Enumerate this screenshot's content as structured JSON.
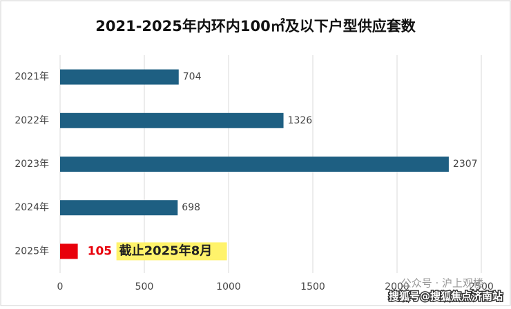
{
  "chart_data": {
    "type": "hbar",
    "title": "2021-2025年内环内100㎡及以下户型供应套数",
    "categories": [
      "2021年",
      "2022年",
      "2023年",
      "2024年",
      "2025年"
    ],
    "values": [
      704,
      1326,
      2307,
      698,
      105
    ],
    "colors": [
      "#1e5f82",
      "#1e5f82",
      "#1e5f82",
      "#1e5f82",
      "#e8000b"
    ],
    "xlim": [
      0,
      2500
    ],
    "xticks": [
      0,
      500,
      1000,
      1500,
      2000,
      2500
    ],
    "grid": true,
    "annotation": "截止2025年8月",
    "watermarks": [
      "公众号 · 沪上观楼",
      "搜狐号@搜狐焦点济南站"
    ]
  }
}
